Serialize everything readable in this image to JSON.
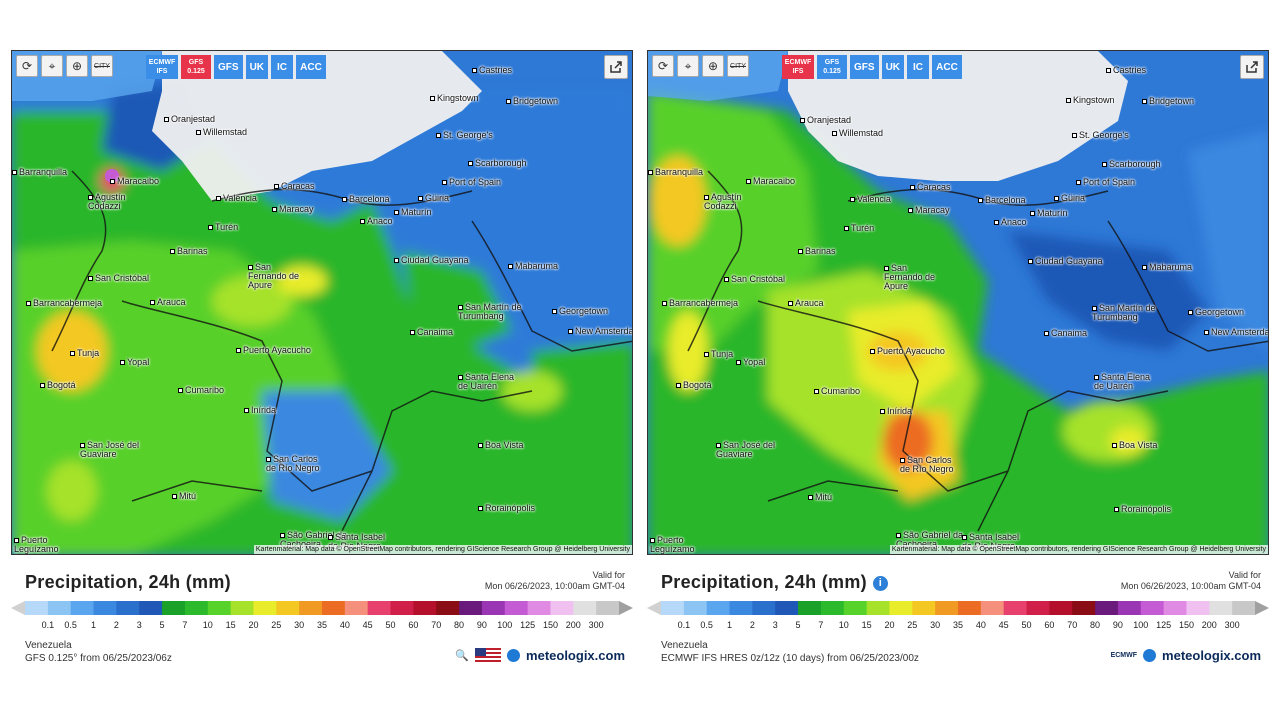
{
  "toolbar": {
    "city_label": "CITY"
  },
  "model_buttons_left": [
    {
      "label": "ECMWF IFS",
      "active": false
    },
    {
      "label": "GFS 0.125",
      "active": true
    },
    {
      "label": "GFS",
      "active": false
    },
    {
      "label": "UK",
      "active": false
    },
    {
      "label": "IC",
      "active": false
    },
    {
      "label": "ACC",
      "active": false
    }
  ],
  "model_buttons_right": [
    {
      "label": "ECMWF IFS",
      "active": true
    },
    {
      "label": "GFS 0.125",
      "active": false
    },
    {
      "label": "GFS",
      "active": false
    },
    {
      "label": "UK",
      "active": false
    },
    {
      "label": "IC",
      "active": false
    },
    {
      "label": "ACC",
      "active": false
    }
  ],
  "cities": [
    "Castries",
    "Kingstown",
    "Bridgetown",
    "Oranjestad",
    "Willemstad",
    "St. George's",
    "Scarborough",
    "Barranquilla",
    "Maracaibo",
    "Port of Spain",
    "Caracas",
    "Güiria",
    "Valencia",
    "Agustín Codazzi",
    "Barcelona",
    "Maracay",
    "Maturín",
    "Anaco",
    "Tucupita",
    "Turén",
    "Barinas",
    "Ciudad Guayana",
    "San Cristóbal",
    "San Fernando de Apure",
    "Mabaruma",
    "Barrancabermeja",
    "Arauca",
    "San Martín de Turumbang",
    "Georgetown",
    "Canaima",
    "New Amsterdam",
    "Tunja",
    "Yopal",
    "Puerto Ayacucho",
    "Bogotá",
    "Cumaribo",
    "Santa Elena de Uairén",
    "Inírida",
    "San José del Guaviare",
    "Boa Vista",
    "San Carlos de Río Negro",
    "Mitú",
    "Rorainópolis",
    "São Gabriel da Cachoeira",
    "Santa Isabel do Rio Negro",
    "Puerto Leguízamo"
  ],
  "attribution": "Kartenmaterial: Map data © OpenStreetMap contributors, rendering GIScience Research Group @ Heidelberg University",
  "left": {
    "title": "Precipitation, 24h (mm)",
    "valid_label": "Valid for",
    "valid_time": "Mon 06/26/2023, 10:00am GMT-04",
    "region": "Venezuela",
    "source": "GFS 0.125° from 06/25/2023/06z",
    "brand": "meteologix.com"
  },
  "right": {
    "title": "Precipitation, 24h (mm)",
    "valid_label": "Valid for",
    "valid_time": "Mon 06/26/2023, 10:00am GMT-04",
    "region": "Venezuela",
    "source": "ECMWF IFS HRES 0z/12z (10 days) from 06/25/2023/00z",
    "brand": "meteologix.com",
    "ecmwf_logo": "ECMWF"
  },
  "scale": {
    "ticks": [
      "0.1",
      "0.5",
      "1",
      "2",
      "3",
      "5",
      "7",
      "10",
      "15",
      "20",
      "25",
      "30",
      "35",
      "40",
      "45",
      "50",
      "60",
      "70",
      "80",
      "90",
      "100",
      "125",
      "150",
      "200",
      "300"
    ],
    "colors": [
      "#b7d9f9",
      "#8cc4f4",
      "#5aa6ee",
      "#3a88e0",
      "#2a6fcc",
      "#1f58b6",
      "#19a12a",
      "#2cba2c",
      "#56d22a",
      "#a6e22a",
      "#e8ec2a",
      "#f4c823",
      "#f09a24",
      "#ec6c24",
      "#f4907c",
      "#e8406c",
      "#d0204a",
      "#b4102c",
      "#8a0c14",
      "#6a1a7a",
      "#9a36b4",
      "#c45ad4",
      "#e08ae4",
      "#f0c0f0",
      "#e0e0e0",
      "#c8c8c8"
    ]
  },
  "icon_names": [
    "reload-icon",
    "location-pin-icon",
    "zoom-icon",
    "share-icon",
    "info-icon",
    "us-flag-icon",
    "hd-magnifier-icon",
    "globe-icon"
  ]
}
